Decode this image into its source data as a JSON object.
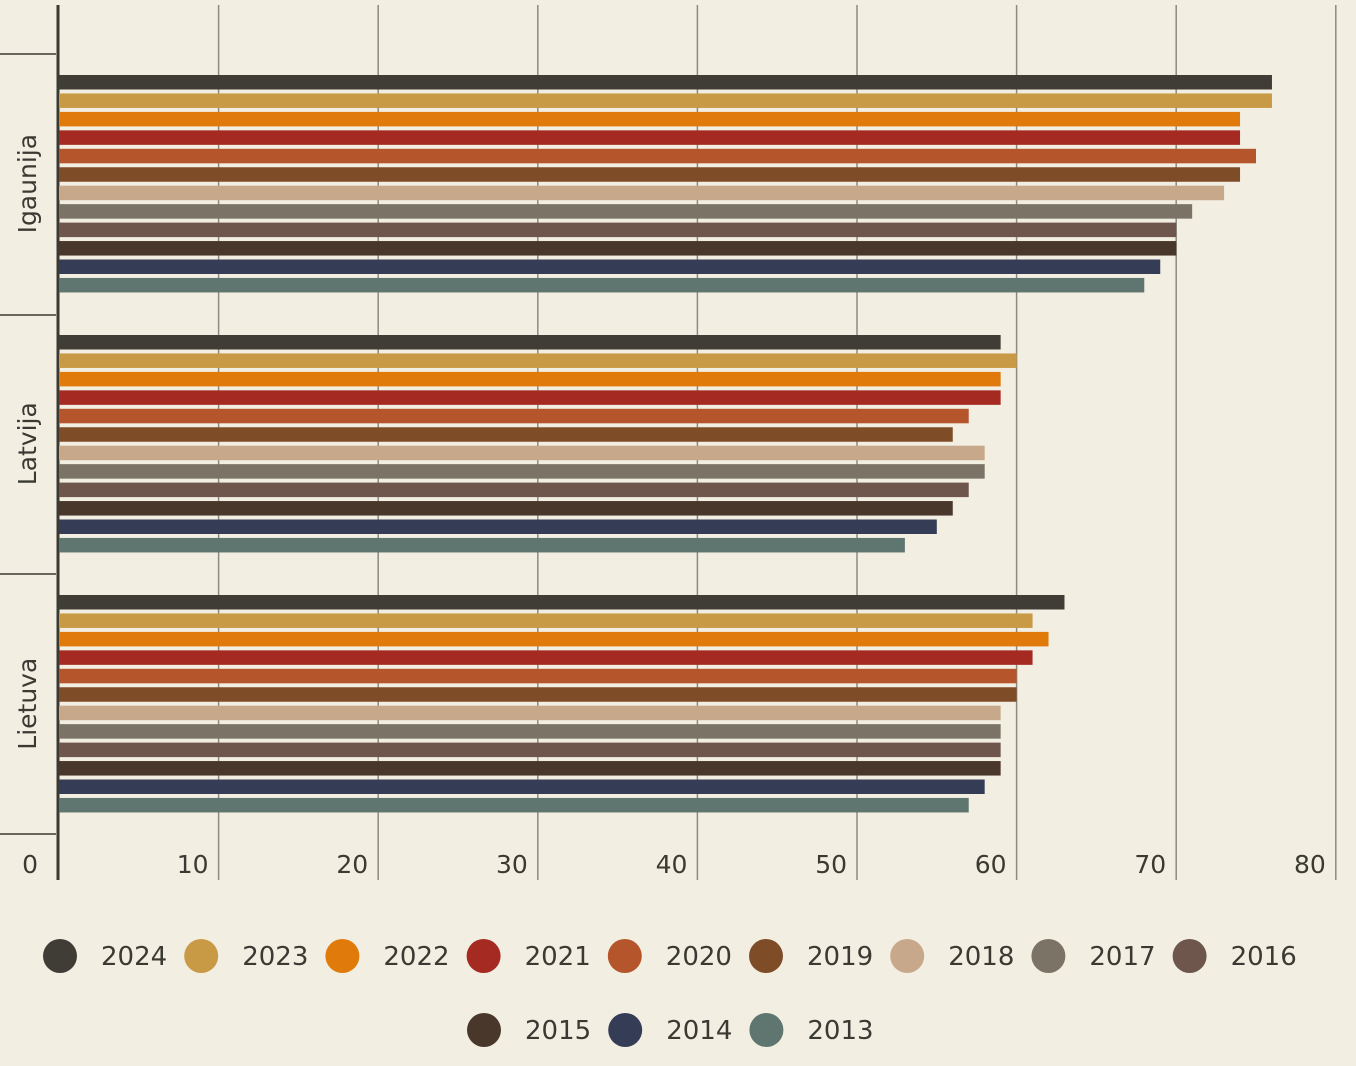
{
  "chart_data": {
    "type": "bar",
    "orientation": "horizontal",
    "categories": [
      "Igaunija",
      "Latvija",
      "Lietuva"
    ],
    "xlim": [
      0,
      80
    ],
    "xticks": [
      "0",
      "10",
      "20",
      "30",
      "40",
      "50",
      "60",
      "70",
      "80"
    ],
    "grid": true,
    "legend_position": "bottom",
    "series": [
      {
        "name": "2024",
        "color": "#3f3d36",
        "values": [
          76,
          59,
          63
        ]
      },
      {
        "name": "2023",
        "color": "#c99a45",
        "values": [
          76,
          60,
          61
        ]
      },
      {
        "name": "2022",
        "color": "#e07b0b",
        "values": [
          74,
          59,
          62
        ]
      },
      {
        "name": "2021",
        "color": "#a52a22",
        "values": [
          74,
          59,
          61
        ]
      },
      {
        "name": "2020",
        "color": "#b5552b",
        "values": [
          75,
          57,
          60
        ]
      },
      {
        "name": "2019",
        "color": "#7e4d27",
        "values": [
          74,
          56,
          60
        ]
      },
      {
        "name": "2018",
        "color": "#c8a88a",
        "values": [
          73,
          58,
          59
        ]
      },
      {
        "name": "2017",
        "color": "#7a7366",
        "values": [
          71,
          58,
          59
        ]
      },
      {
        "name": "2016",
        "color": "#6e564c",
        "values": [
          70,
          57,
          59
        ]
      },
      {
        "name": "2015",
        "color": "#4a372c",
        "values": [
          70,
          56,
          59
        ]
      },
      {
        "name": "2014",
        "color": "#353d56",
        "values": [
          69,
          55,
          58
        ]
      },
      {
        "name": "2013",
        "color": "#5f7570",
        "values": [
          68,
          53,
          57
        ]
      }
    ]
  }
}
